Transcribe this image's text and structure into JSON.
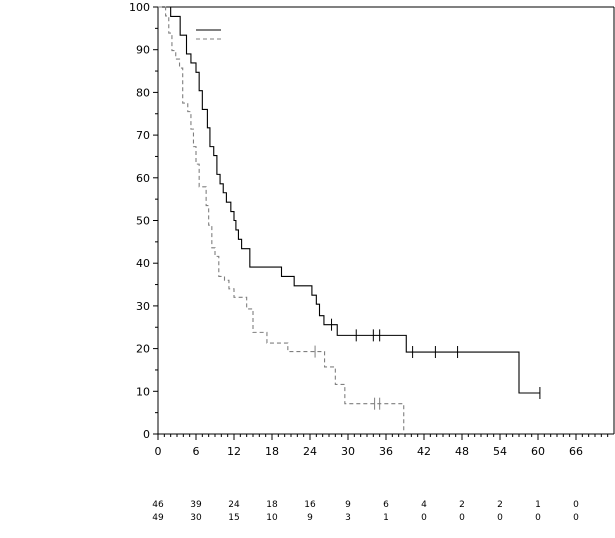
{
  "chart_data": {
    "type": "line",
    "title": "",
    "xlabel": "",
    "ylabel": "",
    "xlim": [
      0,
      72
    ],
    "ylim": [
      0,
      100
    ],
    "xticks": [
      0,
      6,
      12,
      18,
      24,
      30,
      36,
      42,
      48,
      54,
      60,
      66
    ],
    "yticks": [
      0,
      10,
      20,
      30,
      40,
      50,
      60,
      70,
      80,
      90,
      100
    ],
    "legend_position": "top-left",
    "series": [
      {
        "name": "",
        "color": "#000000",
        "style": "solid",
        "steps": [
          [
            0,
            100
          ],
          [
            2,
            97.8
          ],
          [
            3.5,
            93.4
          ],
          [
            4.5,
            89.0
          ],
          [
            5.2,
            86.9
          ],
          [
            6,
            84.7
          ],
          [
            6.5,
            80.4
          ],
          [
            7,
            76.0
          ],
          [
            7.8,
            71.7
          ],
          [
            8.2,
            67.3
          ],
          [
            8.8,
            65.2
          ],
          [
            9.3,
            60.8
          ],
          [
            9.8,
            58.6
          ],
          [
            10.3,
            56.5
          ],
          [
            10.8,
            54.3
          ],
          [
            11.5,
            52.1
          ],
          [
            12,
            50.0
          ],
          [
            12.3,
            47.8
          ],
          [
            12.7,
            45.6
          ],
          [
            13.2,
            43.4
          ],
          [
            14.5,
            39.1
          ],
          [
            19.5,
            36.9
          ],
          [
            21.5,
            34.7
          ],
          [
            24.3,
            32.5
          ],
          [
            25,
            30.4
          ],
          [
            25.5,
            27.7
          ],
          [
            26.2,
            25.6
          ],
          [
            28.3,
            23.1
          ],
          [
            39.2,
            19.2
          ],
          [
            57,
            9.6
          ],
          [
            60.3,
            9.6
          ]
        ],
        "censored": [
          [
            27.4,
            25.6
          ],
          [
            31.3,
            23.1
          ],
          [
            34.0,
            23.1
          ],
          [
            35.0,
            23.1
          ],
          [
            40.2,
            19.2
          ],
          [
            43.8,
            19.2
          ],
          [
            47.3,
            19.2
          ],
          [
            60.3,
            9.6
          ]
        ]
      },
      {
        "name": "",
        "color": "#7f7f7f",
        "style": "dashed",
        "steps": [
          [
            0,
            100
          ],
          [
            1.2,
            97.9
          ],
          [
            1.7,
            93.9
          ],
          [
            2.2,
            89.8
          ],
          [
            2.8,
            87.8
          ],
          [
            3.4,
            85.7
          ],
          [
            3.9,
            77.5
          ],
          [
            4.7,
            75.5
          ],
          [
            5.2,
            71.4
          ],
          [
            5.6,
            67.3
          ],
          [
            6.0,
            63.2
          ],
          [
            6.5,
            57.9
          ],
          [
            7.6,
            53.5
          ],
          [
            8.0,
            48.9
          ],
          [
            8.5,
            43.6
          ],
          [
            9.0,
            41.6
          ],
          [
            9.6,
            36.9
          ],
          [
            10.5,
            36.0
          ],
          [
            11.2,
            34.0
          ],
          [
            12.0,
            32.0
          ],
          [
            14.0,
            29.3
          ],
          [
            15.0,
            23.8
          ],
          [
            17.2,
            21.3
          ],
          [
            20.5,
            19.3
          ],
          [
            26.3,
            15.7
          ],
          [
            28.0,
            11.6
          ],
          [
            29.5,
            7.1
          ],
          [
            38.8,
            0
          ],
          [
            38.8,
            0
          ]
        ],
        "censored": [
          [
            24.8,
            19.3
          ],
          [
            34.2,
            7.1
          ],
          [
            35.0,
            7.1
          ]
        ]
      }
    ],
    "risk_table": {
      "times": [
        0,
        6,
        12,
        18,
        24,
        30,
        36,
        42,
        48,
        54,
        60,
        66
      ],
      "rows": [
        {
          "values": [
            "46",
            "39",
            "24",
            "18",
            "16",
            "9",
            "6",
            "4",
            "2",
            "2",
            "1",
            "0"
          ]
        },
        {
          "values": [
            "49",
            "30",
            "15",
            "10",
            "9",
            "3",
            "1",
            "0",
            "0",
            "0",
            "0",
            "0"
          ]
        }
      ]
    }
  }
}
